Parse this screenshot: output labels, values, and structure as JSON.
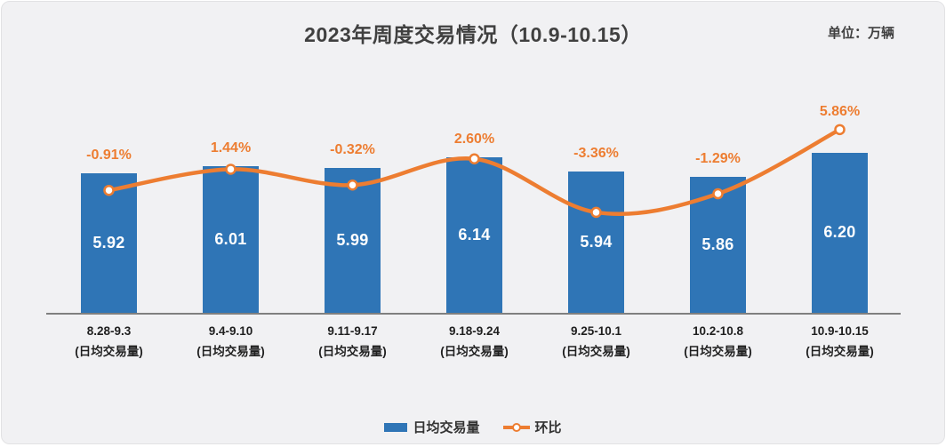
{
  "title": "2023年周度交易情况（10.9-10.15）",
  "unit_label": "单位：万辆",
  "legend": {
    "bar_label": "日均交易量",
    "line_label": "环比"
  },
  "colors": {
    "bar": "#2F75B6",
    "line": "#ED7D31",
    "pct_label": "#ED7D31",
    "bar_value_text": "#FFFFFF",
    "axis": "#7f7f7f",
    "title_text": "#404040",
    "x_label_text": "#1f1f1f",
    "background": "#F1F1F3"
  },
  "chart_data": {
    "type": "bar+line",
    "title": "2023年周度交易情况（10.9-10.15）",
    "unit": "万辆",
    "categories": [
      "8.28-9.3",
      "9.4-9.10",
      "9.11-9.17",
      "9.18-9.24",
      "9.25-10.1",
      "10.2-10.8",
      "10.9-10.15"
    ],
    "category_note": "(日均交易量)",
    "series": [
      {
        "name": "日均交易量",
        "type": "bar",
        "values": [
          5.92,
          6.01,
          5.99,
          6.14,
          5.94,
          5.86,
          6.2
        ],
        "labels": [
          "5.92",
          "6.01",
          "5.99",
          "6.14",
          "5.94",
          "5.86",
          "6.20"
        ]
      },
      {
        "name": "环比",
        "type": "line",
        "values_pct": [
          -0.91,
          1.44,
          -0.32,
          2.6,
          -3.36,
          -1.29,
          5.86
        ],
        "labels": [
          "-0.91%",
          "1.44%",
          "-0.32%",
          "2.60%",
          "-3.36%",
          "-1.29%",
          "5.86%"
        ]
      }
    ],
    "bar_axis_implied_range": [
      4.0,
      6.6
    ],
    "grid": false,
    "legend_position": "bottom"
  }
}
